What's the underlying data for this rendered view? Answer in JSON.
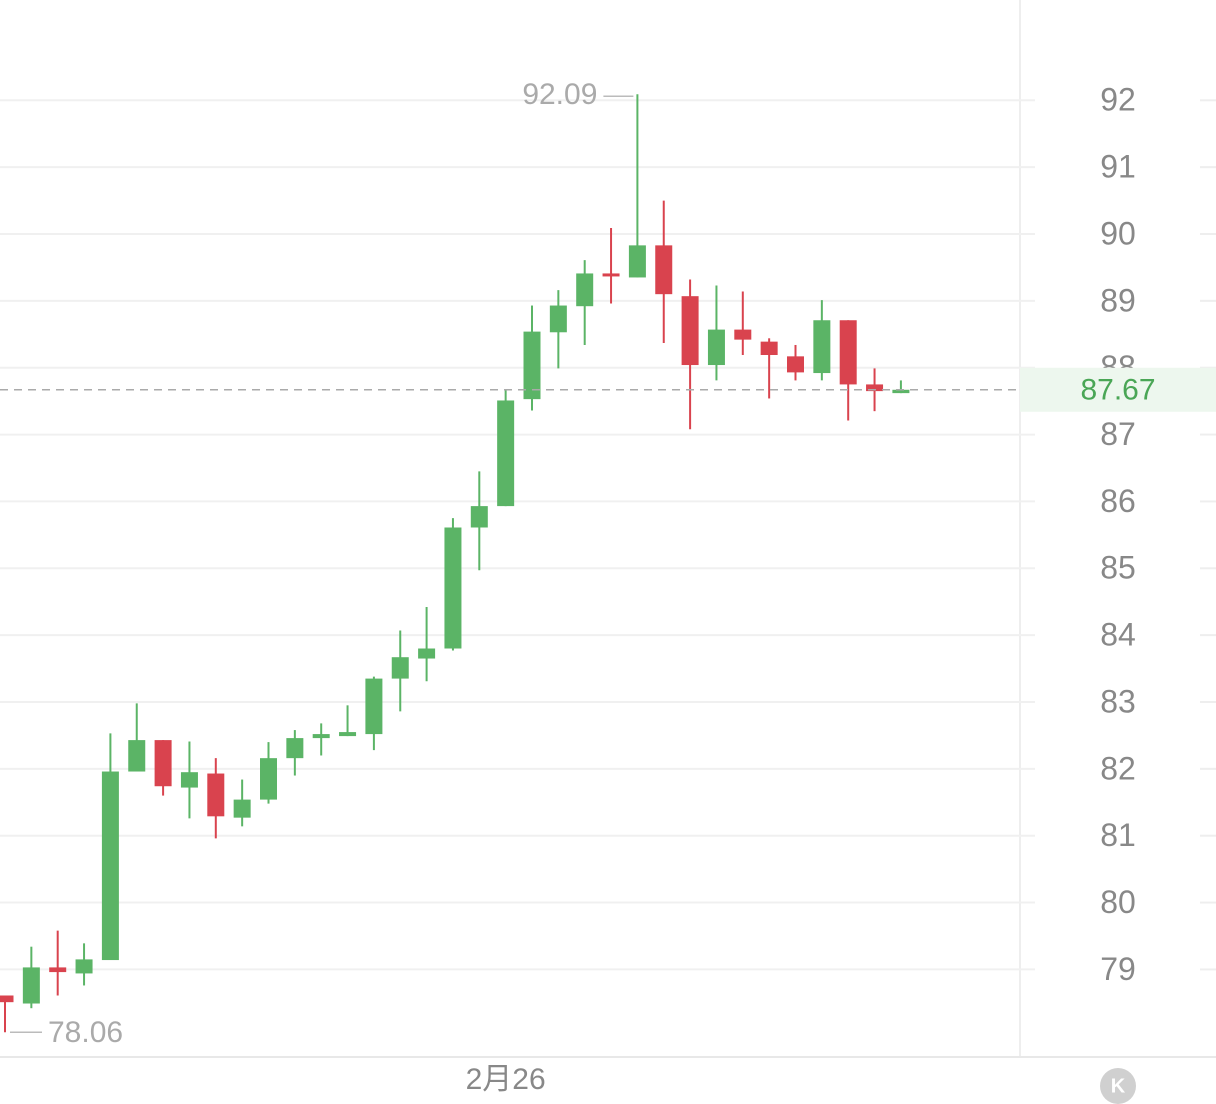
{
  "chart_data": {
    "type": "candlestick",
    "categories": [
      null,
      null,
      null,
      null,
      null,
      null,
      null,
      null,
      null,
      null,
      null,
      null,
      null,
      null,
      null,
      null,
      null,
      null,
      null,
      "2月26",
      null,
      null,
      null,
      null,
      null,
      null,
      null,
      null,
      null,
      null,
      null,
      null,
      null,
      null,
      null
    ],
    "open": [
      78.61,
      78.49,
      79.03,
      78.94,
      79.14,
      81.96,
      82.43,
      81.72,
      81.93,
      81.27,
      81.54,
      82.16,
      82.46,
      82.49,
      82.52,
      83.35,
      83.65,
      83.8,
      85.61,
      85.93,
      87.53,
      88.53,
      88.92,
      89.41,
      89.35,
      89.83,
      89.07,
      88.04,
      88.57,
      88.39,
      88.17,
      87.92,
      88.71,
      87.75,
      87.62
    ],
    "high": [
      78.61,
      79.34,
      79.58,
      79.39,
      82.53,
      82.98,
      82.43,
      82.41,
      82.16,
      81.84,
      82.4,
      82.58,
      82.68,
      82.95,
      83.38,
      84.07,
      84.42,
      85.75,
      86.45,
      87.66,
      88.93,
      89.16,
      89.61,
      90.09,
      92.09,
      90.5,
      89.32,
      89.23,
      89.14,
      88.44,
      88.34,
      89.01,
      88.71,
      87.99,
      87.81
    ],
    "low": [
      78.06,
      78.42,
      78.61,
      78.76,
      79.14,
      81.96,
      81.6,
      81.26,
      80.96,
      81.14,
      81.48,
      81.9,
      82.2,
      82.49,
      82.28,
      82.86,
      83.31,
      83.77,
      84.97,
      85.93,
      87.36,
      87.99,
      88.34,
      88.96,
      89.35,
      88.37,
      87.08,
      87.81,
      88.19,
      87.54,
      87.81,
      87.81,
      87.21,
      87.35,
      87.62
    ],
    "close": [
      78.51,
      79.03,
      78.96,
      79.15,
      81.96,
      82.43,
      81.74,
      81.95,
      81.29,
      81.54,
      82.16,
      82.46,
      82.52,
      82.55,
      83.35,
      83.67,
      83.8,
      85.61,
      85.93,
      87.51,
      88.54,
      88.93,
      89.41,
      89.37,
      89.83,
      89.1,
      88.04,
      88.57,
      88.42,
      88.19,
      87.93,
      88.71,
      87.75,
      87.65,
      87.67
    ],
    "up_color": "#5bb466",
    "down_color": "#d9434e",
    "ylim": [
      77.69,
      93.5
    ],
    "yticks": [
      79,
      80,
      81,
      82,
      83,
      84,
      85,
      86,
      87,
      88,
      89,
      90,
      91,
      92
    ],
    "grid": true,
    "max_annotation": 92.09,
    "min_annotation": 78.06,
    "last_price": 87.67,
    "corner_button": "K"
  }
}
